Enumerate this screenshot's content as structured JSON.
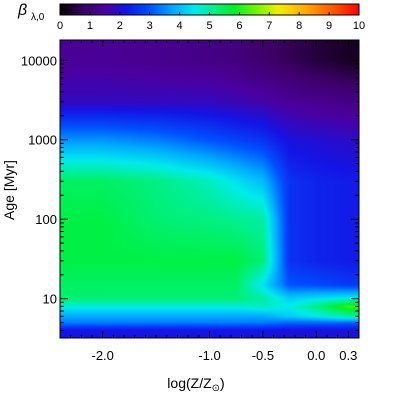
{
  "chart_data": {
    "type": "heatmap",
    "title": "",
    "xlabel": "log(Z/Z",
    "xlabel_sub": "⊙",
    "xlabel_close": ")",
    "ylabel": "Age [Myr]",
    "x_scale": "linear",
    "y_scale": "log",
    "xlim": [
      -2.4,
      0.4
    ],
    "ylim": [
      3.2,
      18000
    ],
    "x_ticks": [
      -2.0,
      -1.0,
      -0.5,
      0.0,
      0.3
    ],
    "x_tick_labels": [
      "-2.0",
      "-1.0",
      "-0.5",
      "0.0",
      "0.3"
    ],
    "y_ticks": [
      10,
      100,
      1000,
      10000
    ],
    "y_tick_labels": [
      "10",
      "100",
      "1000",
      "10000"
    ],
    "colorbar": {
      "label": "β",
      "label_sub": "λ,0",
      "range": [
        0,
        10
      ],
      "ticks": [
        0,
        1,
        2,
        3,
        4,
        5,
        6,
        7,
        8,
        9,
        10
      ],
      "tick_labels": [
        "0",
        "1",
        "2",
        "3",
        "4",
        "5",
        "6",
        "7",
        "8",
        "9",
        "10"
      ],
      "colormap": "rainbow (black-purple-blue-cyan-green-yellow-orange-red)"
    },
    "x": [
      -2.4,
      -2.0,
      -1.5,
      -1.0,
      -0.75,
      -0.5,
      -0.25,
      0.0,
      0.3
    ],
    "y": [
      4,
      5,
      6,
      8,
      10,
      15,
      30,
      100,
      300,
      1000,
      3000,
      10000
    ],
    "z": [
      [
        2.2,
        2.2,
        2.2,
        2.2,
        2.2,
        2.2,
        2.1,
        2.1,
        2.1
      ],
      [
        3.4,
        3.4,
        3.4,
        3.4,
        3.4,
        3.4,
        3.2,
        3.2,
        3.2
      ],
      [
        3.8,
        3.8,
        3.8,
        3.8,
        3.8,
        3.8,
        4.2,
        4.5,
        5.0
      ],
      [
        4.6,
        4.6,
        4.6,
        4.6,
        4.6,
        4.8,
        4.5,
        5.2,
        6.2
      ],
      [
        5.3,
        5.3,
        5.3,
        5.3,
        5.3,
        5.0,
        4.2,
        4.4,
        4.6
      ],
      [
        5.4,
        5.4,
        5.4,
        5.4,
        5.4,
        4.4,
        3.0,
        2.9,
        2.7
      ],
      [
        5.6,
        5.6,
        5.6,
        5.6,
        5.6,
        5.3,
        2.6,
        2.4,
        2.3
      ],
      [
        5.6,
        5.6,
        5.3,
        5.2,
        5.1,
        5.0,
        2.6,
        2.4,
        2.3
      ],
      [
        5.4,
        5.4,
        5.2,
        4.8,
        4.4,
        4.0,
        2.6,
        2.4,
        2.3
      ],
      [
        3.6,
        3.6,
        3.4,
        3.0,
        2.8,
        2.6,
        2.1,
        2.0,
        1.9
      ],
      [
        1.8,
        1.8,
        1.8,
        1.8,
        1.7,
        1.6,
        1.4,
        1.3,
        1.2
      ],
      [
        1.4,
        1.4,
        1.3,
        1.2,
        1.1,
        0.9,
        0.7,
        0.5,
        0.3
      ]
    ]
  }
}
